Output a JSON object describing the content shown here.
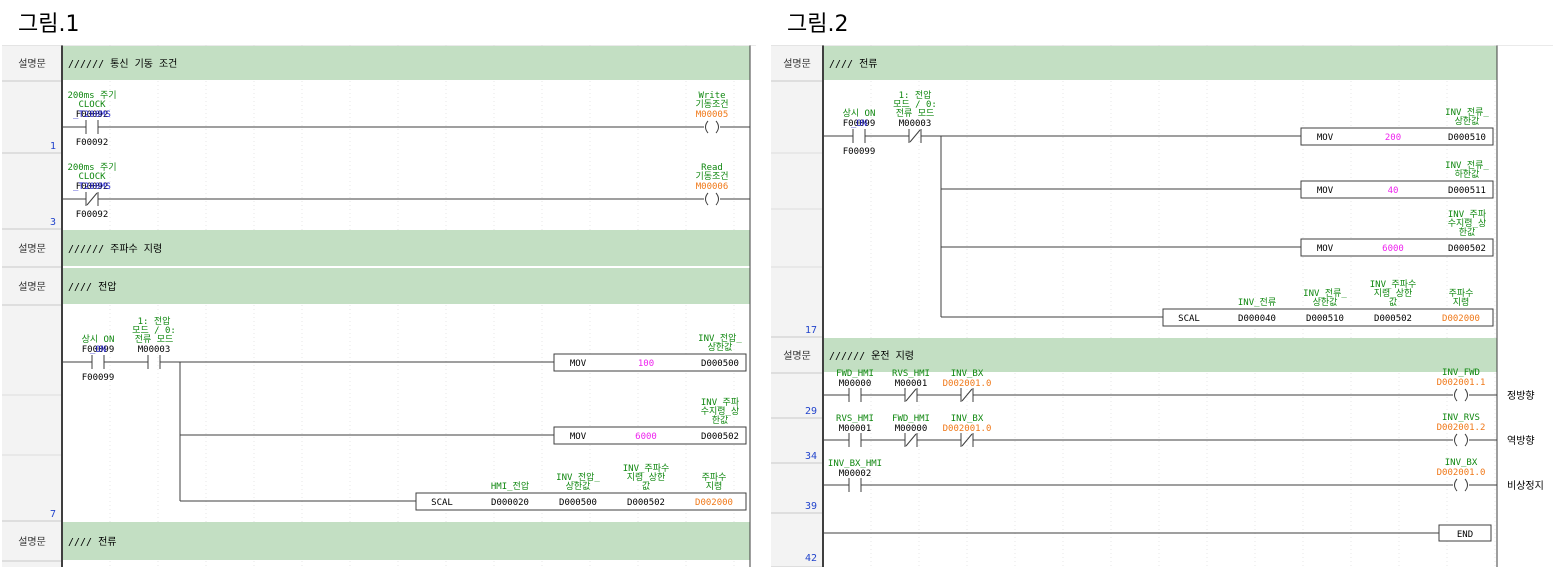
{
  "figures": [
    {
      "title": "그림.1",
      "sections": [
        {
          "kind": "comment",
          "label": "설명문",
          "text": "////// 통신 기동 조건"
        },
        {
          "kind": "rung",
          "step": "1",
          "contacts": [
            {
              "type": "no",
              "addr": "F00092",
              "desc": [
                "200ms 주기",
                "CLOCK"
              ],
              "var": "_T200MS"
            }
          ],
          "coil": {
            "addr": "M00005",
            "desc": [
              "Write",
              "기동조건"
            ]
          }
        },
        {
          "kind": "rung",
          "step": "3",
          "contacts": [
            {
              "type": "nc",
              "addr": "F00092",
              "desc": [
                "200ms 주기",
                "CLOCK"
              ],
              "var": "_T200MS"
            }
          ],
          "coil": {
            "addr": "M00006",
            "desc": [
              "Read",
              "기동조건"
            ]
          }
        },
        {
          "kind": "comment",
          "label": "설명문",
          "text": "////// 주파수 지령"
        },
        {
          "kind": "comment",
          "label": "설명문",
          "text": "//// 전압"
        },
        {
          "kind": "rung",
          "step": "7",
          "contacts": [
            {
              "type": "no",
              "addr": "F00099",
              "desc": [
                "상시 ON"
              ],
              "var": "_ON"
            },
            {
              "type": "no",
              "addr": "M00003",
              "desc": [
                "1: 전압",
                "모드 / 0:",
                "전류 모드"
              ]
            }
          ],
          "branches": [
            {
              "op": "MOV",
              "src": "100",
              "dst": "D000500",
              "dst_desc": [
                "INV_전압_",
                "상한값"
              ]
            },
            {
              "op": "MOV",
              "src": "6000",
              "dst": "D000502",
              "dst_desc": [
                "INV_주파",
                "수지령_상",
                "한값"
              ]
            },
            {
              "op": "SCAL",
              "args": [
                "D000020",
                "D000500",
                "D000502",
                "D002000"
              ],
              "args_desc": [
                [
                  "HMI_전압"
                ],
                [
                  "INV_전압_",
                  "상한값"
                ],
                [
                  "INV_주파수",
                  "지령_상한",
                  "값"
                ],
                [
                  "주파수",
                  "지령"
                ]
              ]
            }
          ]
        },
        {
          "kind": "comment",
          "label": "설명문",
          "text": "//// 전류"
        }
      ]
    },
    {
      "title": "그림.2",
      "sections": [
        {
          "kind": "comment",
          "label": "설명문",
          "text": "//// 전류"
        },
        {
          "kind": "rung",
          "step": "17",
          "contacts": [
            {
              "type": "no",
              "addr": "F00099",
              "desc": [
                "상시 ON"
              ],
              "var": "_ON"
            },
            {
              "type": "nc",
              "addr": "M00003",
              "desc": [
                "1: 전압",
                "모드 / 0:",
                "전류 모드"
              ]
            }
          ],
          "branches": [
            {
              "op": "MOV",
              "src": "200",
              "dst": "D000510",
              "dst_desc": [
                "INV_전류_",
                "상한값"
              ]
            },
            {
              "op": "MOV",
              "src": "40",
              "dst": "D000511",
              "dst_desc": [
                "INV_전류_",
                "하한값"
              ]
            },
            {
              "op": "MOV",
              "src": "6000",
              "dst": "D000502",
              "dst_desc": [
                "INV_주파",
                "수지령_상",
                "한값"
              ]
            },
            {
              "op": "SCAL",
              "args": [
                "D000040",
                "D000510",
                "D000502",
                "D002000"
              ],
              "args_desc": [
                [
                  "INV_전류"
                ],
                [
                  "INV_전류_",
                  "상한값"
                ],
                [
                  "INV_주파수",
                  "지령_상한",
                  "값"
                ],
                [
                  "주파수",
                  "지령"
                ]
              ]
            }
          ]
        },
        {
          "kind": "comment",
          "label": "설명문",
          "text": "////// 운전 지령"
        },
        {
          "kind": "rung",
          "step": "29",
          "contacts": [
            {
              "type": "no",
              "addr": "M00000",
              "desc": [
                "FWD_HMI"
              ]
            },
            {
              "type": "nc",
              "addr": "M00001",
              "desc": [
                "RVS_HMI"
              ]
            },
            {
              "type": "nc",
              "addr": "D002001.0",
              "desc": [
                "INV_BX"
              ]
            }
          ],
          "coil": {
            "addr": "D002001.1",
            "desc": [
              "INV_FWD"
            ]
          },
          "note": "정방향"
        },
        {
          "kind": "rung",
          "step": "34",
          "contacts": [
            {
              "type": "no",
              "addr": "M00001",
              "desc": [
                "RVS_HMI"
              ]
            },
            {
              "type": "nc",
              "addr": "M00000",
              "desc": [
                "FWD_HMI"
              ]
            },
            {
              "type": "nc",
              "addr": "D002001.0",
              "desc": [
                "INV_BX"
              ]
            }
          ],
          "coil": {
            "addr": "D002001.2",
            "desc": [
              "INV_RVS"
            ]
          },
          "note": "역방향"
        },
        {
          "kind": "rung",
          "step": "39",
          "contacts": [
            {
              "type": "no",
              "addr": "M00002",
              "desc": [
                "INV_BX_HMI"
              ]
            }
          ],
          "coil": {
            "addr": "D002001.0",
            "desc": [
              "INV_BX"
            ]
          },
          "note": "비상정지"
        },
        {
          "kind": "end",
          "step": "42",
          "label": "END"
        }
      ]
    }
  ],
  "colors": {
    "comment_bg": "#c3dfc3",
    "gutter_bg": "#f3f3f3",
    "grid": "#cfcfcf",
    "rail": "#3f3f3f",
    "addr_black": "#000000",
    "addr_green": "#118811",
    "addr_orange": "#f07818",
    "var_blue": "#2222cc",
    "const_magenta": "#ee22ee",
    "step_blue": "#2244cc"
  }
}
